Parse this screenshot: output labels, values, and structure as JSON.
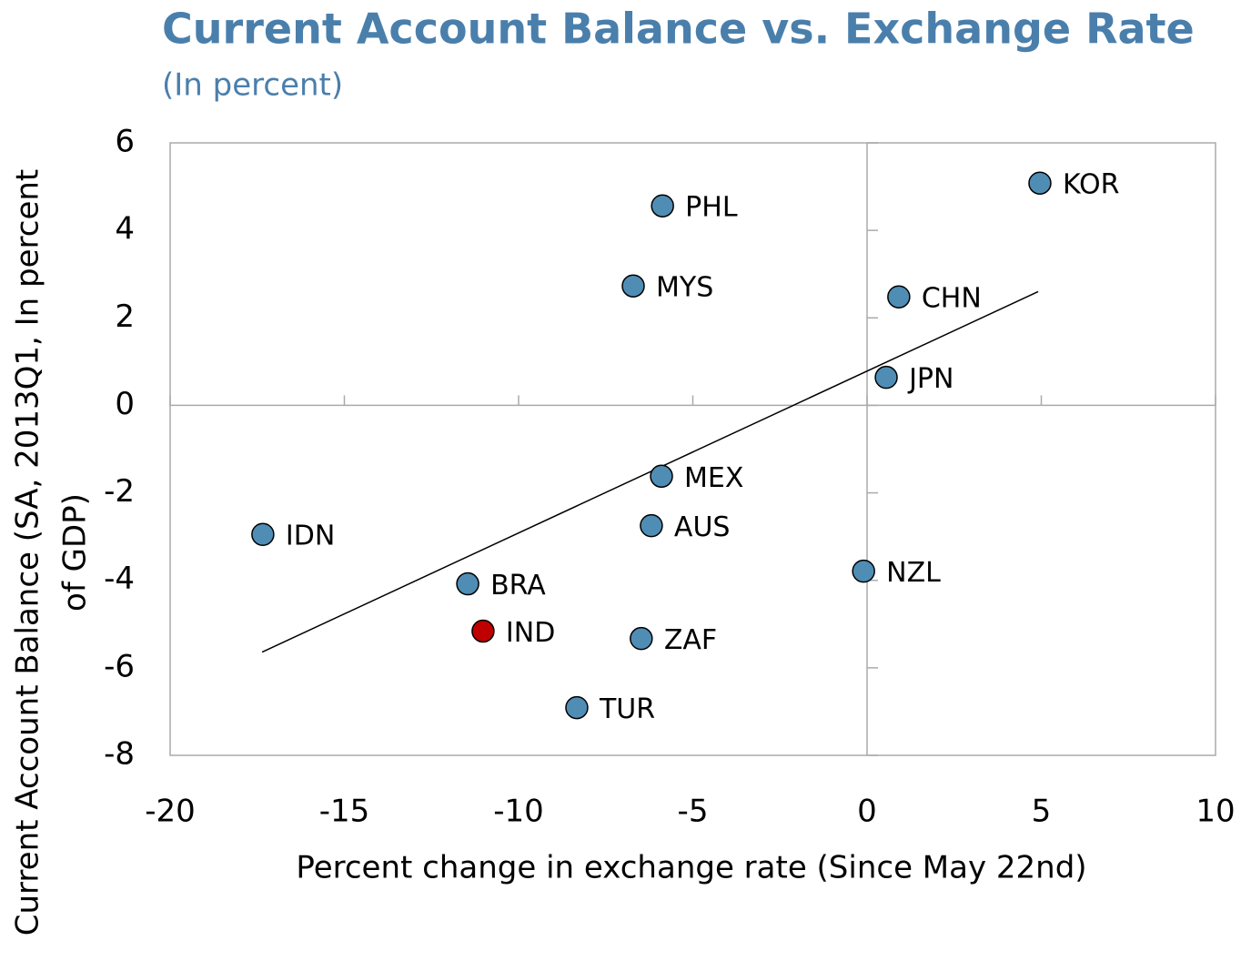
{
  "chart_data": {
    "type": "scatter",
    "title": "Current Account Balance vs. Exchange Rate",
    "subtitle": "(In percent)",
    "xlabel": "Percent change in exchange rate (Since May 22nd)",
    "ylabel": [
      "Current Account Balance (SA, 2013Q1, In percent",
      "of GDP)"
    ],
    "point_labels": [
      "PHL",
      "MYS",
      "KOR",
      "CHN",
      "JPN",
      "MEX",
      "IDN",
      "AUS",
      "NZL",
      "BRA",
      "IND",
      "ZAF",
      "TUR"
    ],
    "x": [
      -5.87,
      -6.71,
      4.96,
      0.91,
      0.55,
      -5.9,
      -17.34,
      -6.19,
      -0.1,
      -11.46,
      -11.02,
      -6.48,
      -8.33
    ],
    "values": [
      4.56,
      2.73,
      5.08,
      2.48,
      0.64,
      -1.62,
      -2.95,
      -2.75,
      -3.79,
      -4.08,
      -5.16,
      -5.33,
      -6.91
    ],
    "colors": [
      "#4f8db5",
      "#4f8db5",
      "#4f8db5",
      "#4f8db5",
      "#4f8db5",
      "#4f8db5",
      "#4f8db5",
      "#4f8db5",
      "#4f8db5",
      "#4f8db5",
      "#c00000",
      "#4f8db5",
      "#4f8db5"
    ],
    "trendline": {
      "x": [
        -17.36,
        4.91
      ],
      "values": [
        -5.64,
        2.6
      ]
    },
    "xlim": [
      -20,
      10
    ],
    "xticks": [
      -20,
      -15,
      -10,
      -5,
      0,
      5,
      10
    ],
    "ylim": [
      -8,
      6
    ],
    "yticks": [
      -8,
      -6,
      -4,
      -2,
      0,
      2,
      4,
      6
    ]
  }
}
